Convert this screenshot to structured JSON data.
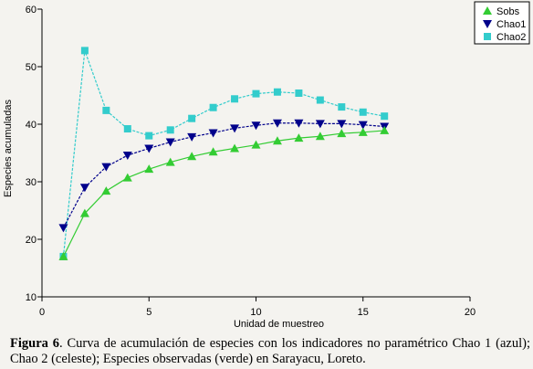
{
  "chart_data": {
    "type": "line",
    "xlabel": "Unidad de muestreo",
    "ylabel": "Especies acumuladas",
    "xlim": [
      0,
      20
    ],
    "ylim": [
      10,
      60
    ],
    "xticks": [
      0,
      5,
      10,
      15,
      20
    ],
    "yticks": [
      10,
      20,
      30,
      40,
      50,
      60
    ],
    "grid": false,
    "legend_position": "top-right",
    "series": [
      {
        "name": "Sobs",
        "color": "#33cc33",
        "marker": "triangle-up",
        "x": [
          1,
          2,
          3,
          4,
          5,
          6,
          7,
          8,
          9,
          10,
          11,
          12,
          13,
          14,
          15,
          16
        ],
        "values": [
          17,
          24.5,
          28.4,
          30.7,
          32.2,
          33.4,
          34.4,
          35.2,
          35.8,
          36.4,
          37.1,
          37.6,
          37.9,
          38.4,
          38.6,
          38.9
        ]
      },
      {
        "name": "Chao1",
        "color": "#00008b",
        "marker": "triangle-down",
        "x": [
          1,
          2,
          3,
          4,
          5,
          6,
          7,
          8,
          9,
          10,
          11,
          12,
          13,
          14,
          15,
          16
        ],
        "values": [
          22,
          29,
          32.6,
          34.6,
          35.8,
          36.9,
          37.8,
          38.5,
          39.3,
          39.8,
          40.2,
          40.2,
          40.1,
          40.1,
          39.9,
          39.6
        ]
      },
      {
        "name": "Chao2",
        "color": "#33cccc",
        "marker": "square",
        "x": [
          1,
          2,
          3,
          4,
          5,
          6,
          7,
          8,
          9,
          10,
          11,
          12,
          13,
          14,
          15,
          16
        ],
        "values": [
          17,
          52.8,
          42.4,
          39.2,
          38,
          39,
          41,
          42.9,
          44.4,
          45.3,
          45.6,
          45.4,
          44.2,
          43,
          42.1,
          41.4
        ]
      }
    ]
  },
  "caption": {
    "label": "Figura 6",
    "text": ". Curva de acumulación de especies con los indicadores no paramétrico Chao 1 (azul); Chao 2 (celeste); Especies observadas (verde) en Sarayacu, Loreto."
  }
}
